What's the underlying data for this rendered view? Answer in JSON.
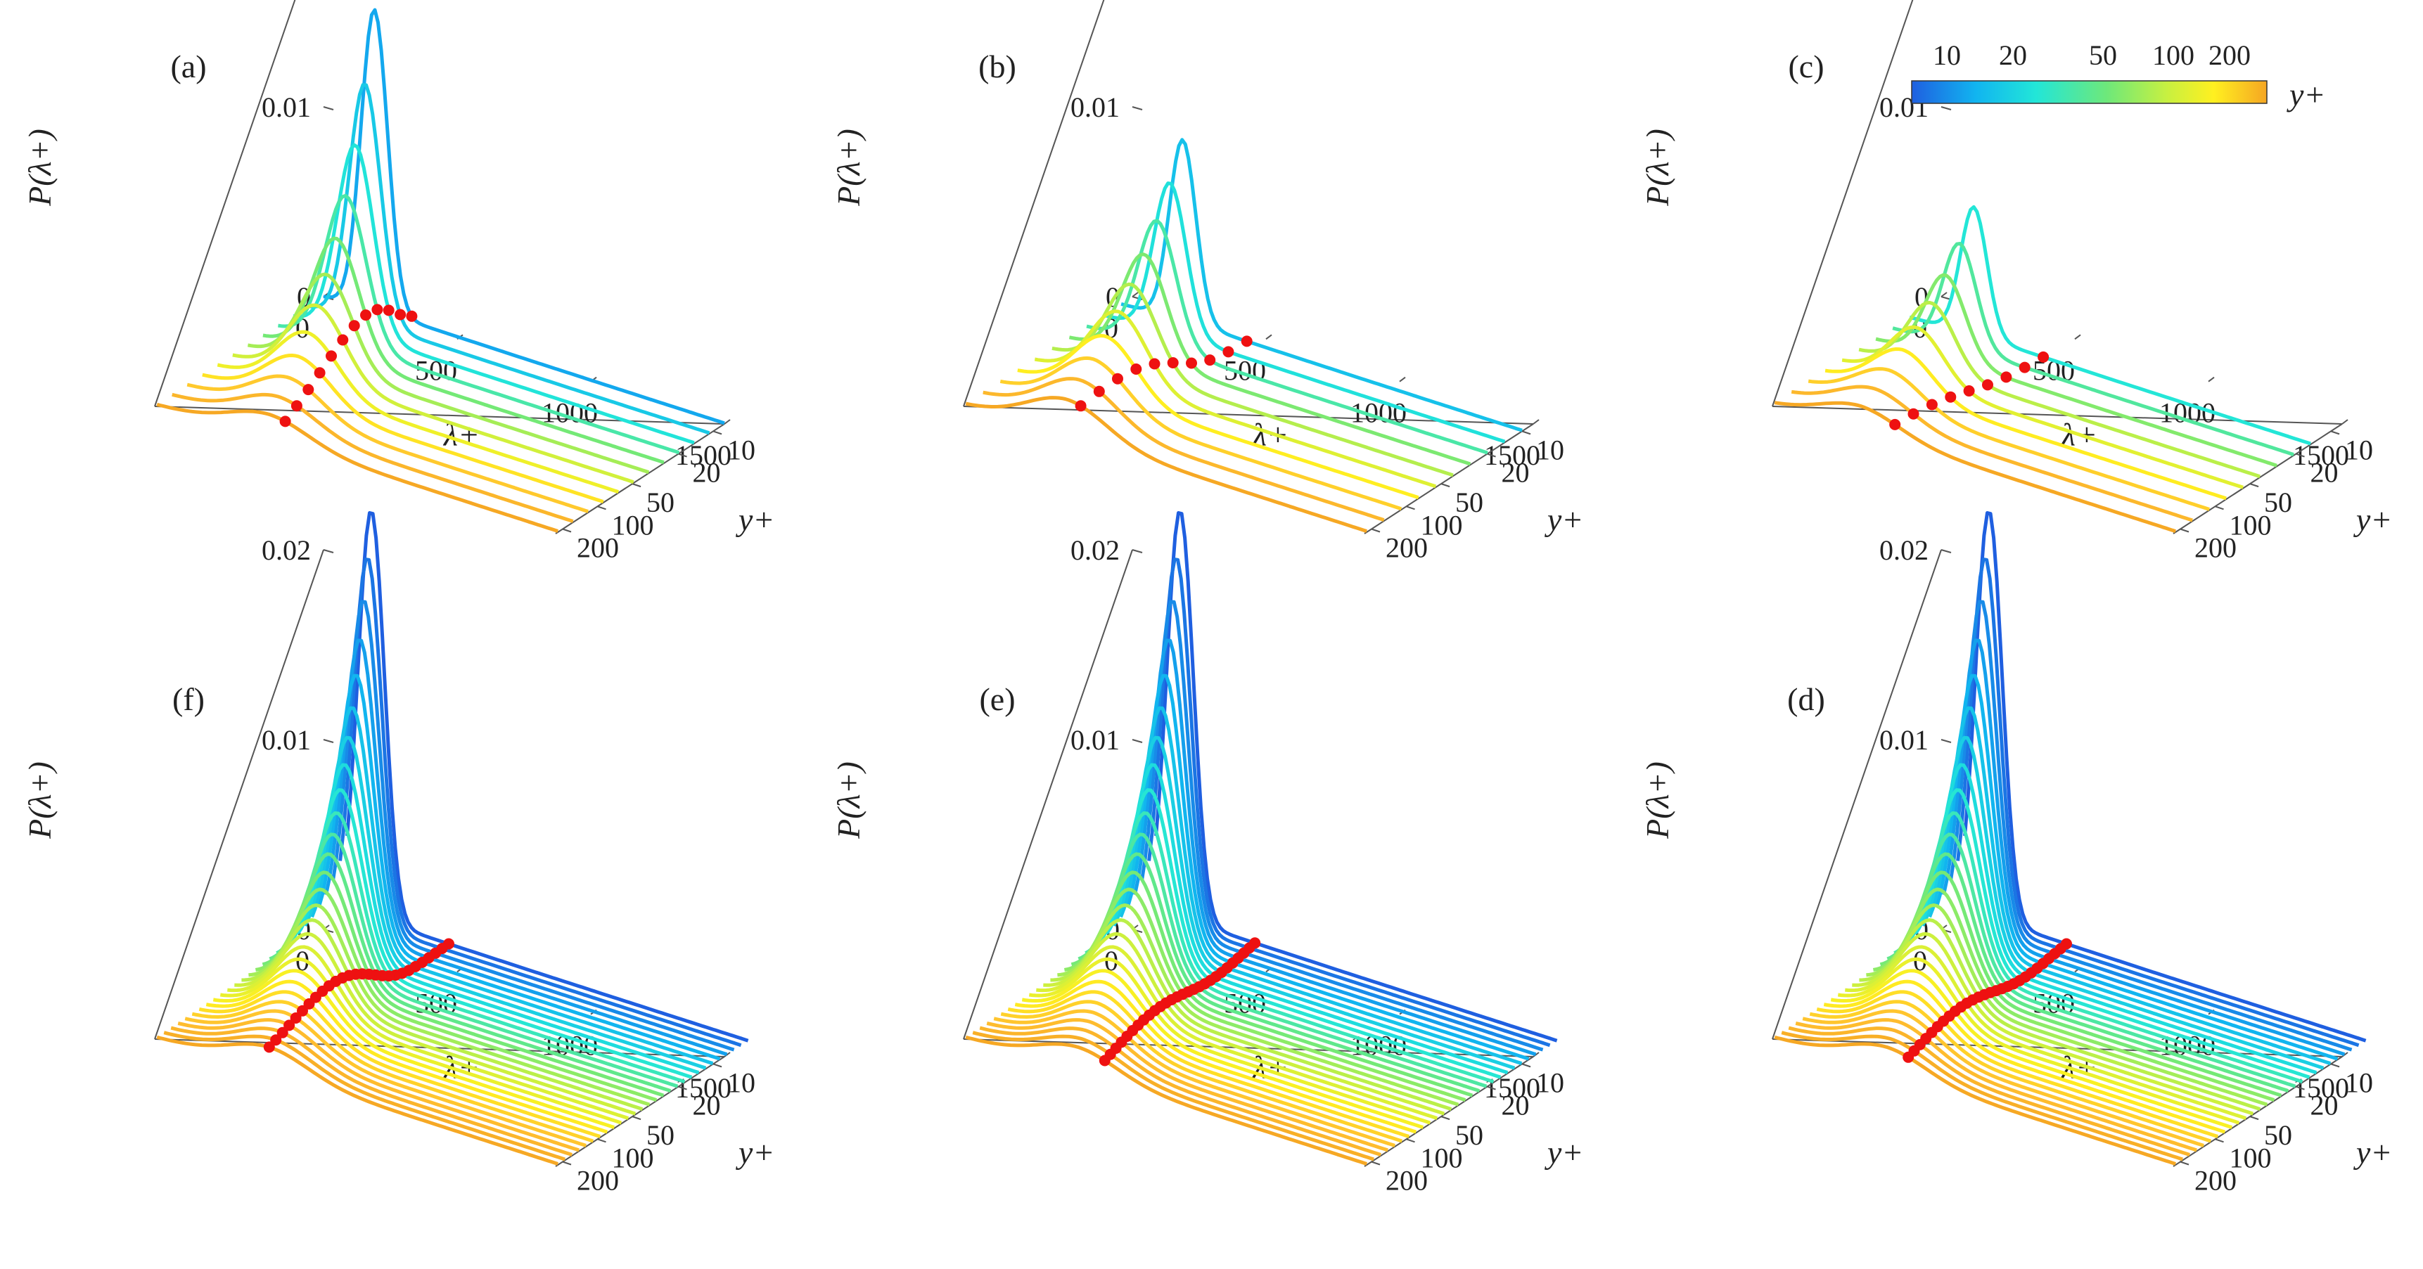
{
  "chart_data": {
    "type": "waterfall-3d-line",
    "shared_axes": {
      "x_label": "λ+",
      "x_ticks": [
        "0",
        "500",
        "1000",
        "1500"
      ],
      "x_range": [
        0,
        1500
      ],
      "y_label": "y+",
      "y_ticks": [
        "10",
        "20",
        "50",
        "100",
        "200"
      ],
      "z_label": "P(λ+)",
      "z_ticks": [
        "0",
        "0.01",
        "0.02"
      ],
      "z_range": [
        0,
        0.02
      ]
    },
    "colorbar": {
      "label": "y+",
      "ticks": [
        "10",
        "20",
        "50",
        "100",
        "200"
      ],
      "colormap": [
        "#1f5fe0",
        "#11b4f0",
        "#22e6d8",
        "#6ee87a",
        "#c8f040",
        "#fff020",
        "#ffc030",
        "#f5a623"
      ]
    },
    "panels": [
      {
        "label": "(a)",
        "yplus_range": [
          8,
          220
        ],
        "n_curves": 12,
        "peak_max": 0.0158,
        "peak_min": 0.0012,
        "peak_lambda_start": 190,
        "peak_lambda_end": 420,
        "dot_lambda_start": 330,
        "dot_lambda_end": 480
      },
      {
        "label": "(b)",
        "yplus_range": [
          10,
          220
        ],
        "n_curves": 10,
        "peak_max": 0.0095,
        "peak_min": 0.0018,
        "peak_lambda_start": 230,
        "peak_lambda_end": 380,
        "dot_lambda_start": 470,
        "dot_lambda_end": 430
      },
      {
        "label": "(c)",
        "yplus_range": [
          15,
          220
        ],
        "n_curves": 9,
        "peak_max": 0.0067,
        "peak_min": 0.0012,
        "peak_lambda_start": 240,
        "peak_lambda_end": 320,
        "dot_lambda_start": 500,
        "dot_lambda_end": 450
      },
      {
        "label": "(d)",
        "yplus_range": [
          5,
          220
        ],
        "n_curves": 28,
        "peak_max": 0.0215,
        "peak_min": 0.0012,
        "peak_lambda_start": 90,
        "peak_lambda_end": 420,
        "dot_lambda_start": 380,
        "dot_lambda_end": 500
      },
      {
        "label": "(e)",
        "yplus_range": [
          5,
          220
        ],
        "n_curves": 28,
        "peak_max": 0.0215,
        "peak_min": 0.0012,
        "peak_lambda_start": 90,
        "peak_lambda_end": 420,
        "dot_lambda_start": 370,
        "dot_lambda_end": 520
      },
      {
        "label": "(f)",
        "yplus_range": [
          5,
          220
        ],
        "n_curves": 28,
        "peak_max": 0.0215,
        "peak_min": 0.0012,
        "peak_lambda_start": 90,
        "peak_lambda_end": 420,
        "dot_lambda_start": 380,
        "dot_lambda_end": 420
      }
    ]
  }
}
